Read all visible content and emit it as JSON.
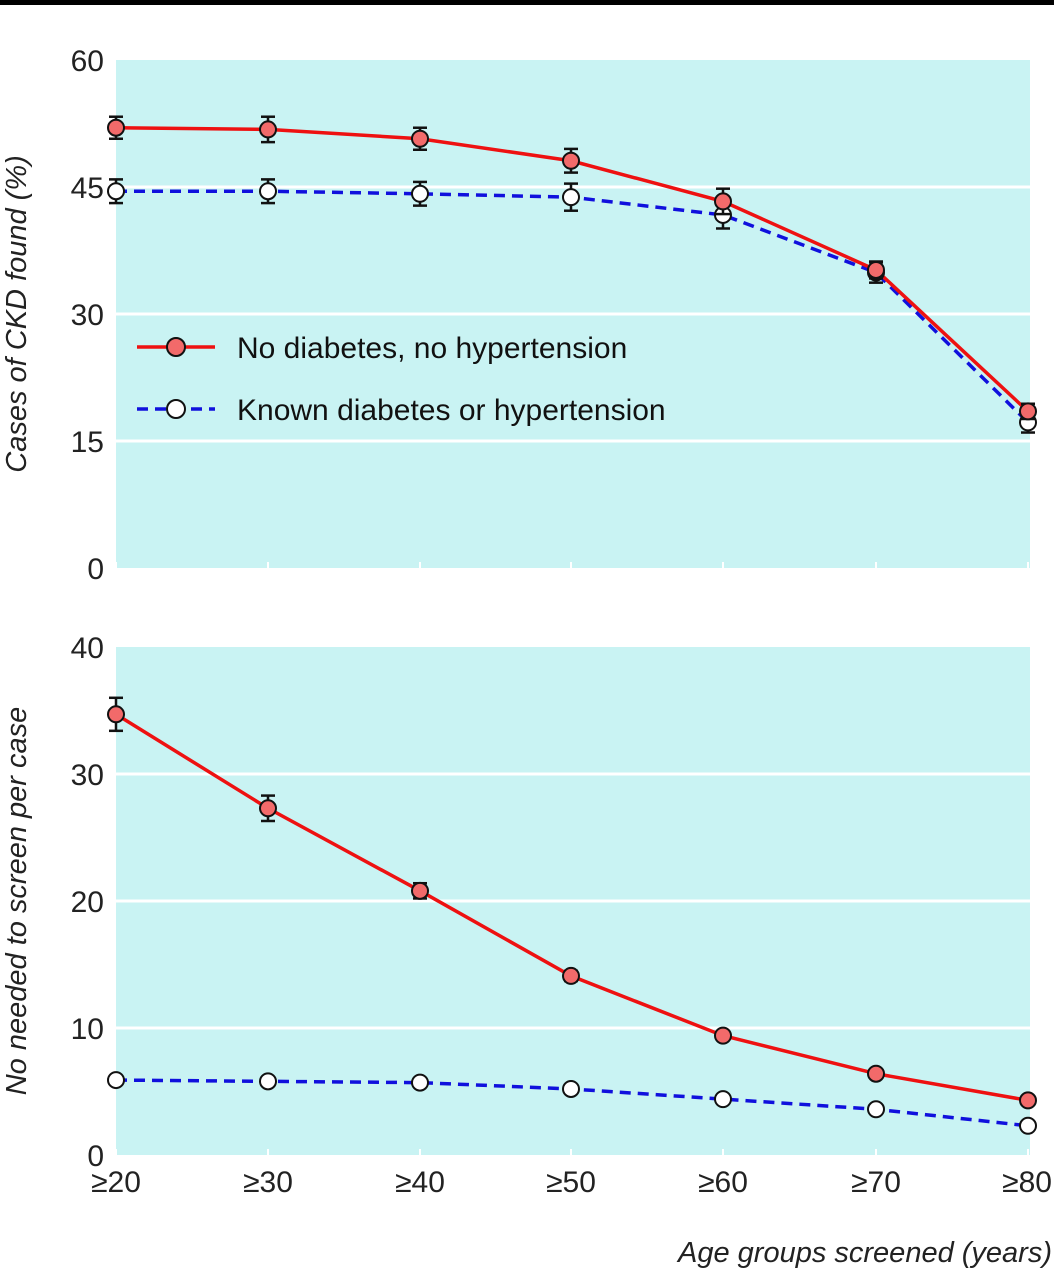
{
  "colors": {
    "plot_background": "#c9f3f3",
    "gridline": "#ffffff",
    "series_solid": "#ee1111",
    "marker_fill": "#f26a6a",
    "series_dashed": "#1010dd",
    "open_marker_fill": "#ffffff"
  },
  "chart_data": [
    {
      "type": "line",
      "ylabel": "Cases of CKD found (%)",
      "ylim": [
        0,
        60
      ],
      "yticks": [
        "0",
        "15",
        "30",
        "45",
        "60"
      ],
      "grid": true,
      "legend_position": "left, inside plot",
      "categories": [
        "≥20",
        "≥30",
        "≥40",
        "≥50",
        "≥60",
        "≥70",
        "≥80"
      ],
      "series": [
        {
          "name": "No diabetes, no hypertension",
          "line_style": "solid",
          "marker": "filled circle",
          "values": [
            52,
            51.8,
            50.7,
            48.1,
            43.3,
            35.2,
            18.5
          ],
          "error": [
            1.3,
            1.5,
            1.3,
            1.4,
            1.5,
            1.0,
            0.9
          ]
        },
        {
          "name": "Known diabetes or hypertension",
          "line_style": "dashed",
          "marker": "open circle",
          "values": [
            44.5,
            44.5,
            44.2,
            43.8,
            41.7,
            34.9,
            17.2
          ],
          "error": [
            1.4,
            1.4,
            1.4,
            1.6,
            1.6,
            1.2,
            1.2
          ]
        }
      ]
    },
    {
      "type": "line",
      "ylabel": "No needed to screen per case",
      "xlabel": "Age groups screened (years)",
      "ylim": [
        0,
        40
      ],
      "yticks": [
        "0",
        "10",
        "20",
        "30",
        "40"
      ],
      "grid": true,
      "categories": [
        "≥20",
        "≥30",
        "≥40",
        "≥50",
        "≥60",
        "≥70",
        "≥80"
      ],
      "series": [
        {
          "name": "No diabetes, no hypertension",
          "line_style": "solid",
          "marker": "filled circle",
          "values": [
            34.7,
            27.3,
            20.8,
            14.1,
            9.4,
            6.4,
            4.3
          ],
          "error": [
            1.3,
            1.0,
            0.6,
            0.4,
            0.3,
            0.2,
            0.2
          ]
        },
        {
          "name": "Known diabetes or hypertension",
          "line_style": "dashed",
          "marker": "open circle",
          "values": [
            5.9,
            5.8,
            5.7,
            5.2,
            4.4,
            3.6,
            2.3
          ],
          "error": [
            0,
            0,
            0,
            0,
            0,
            0,
            0
          ]
        }
      ]
    }
  ]
}
